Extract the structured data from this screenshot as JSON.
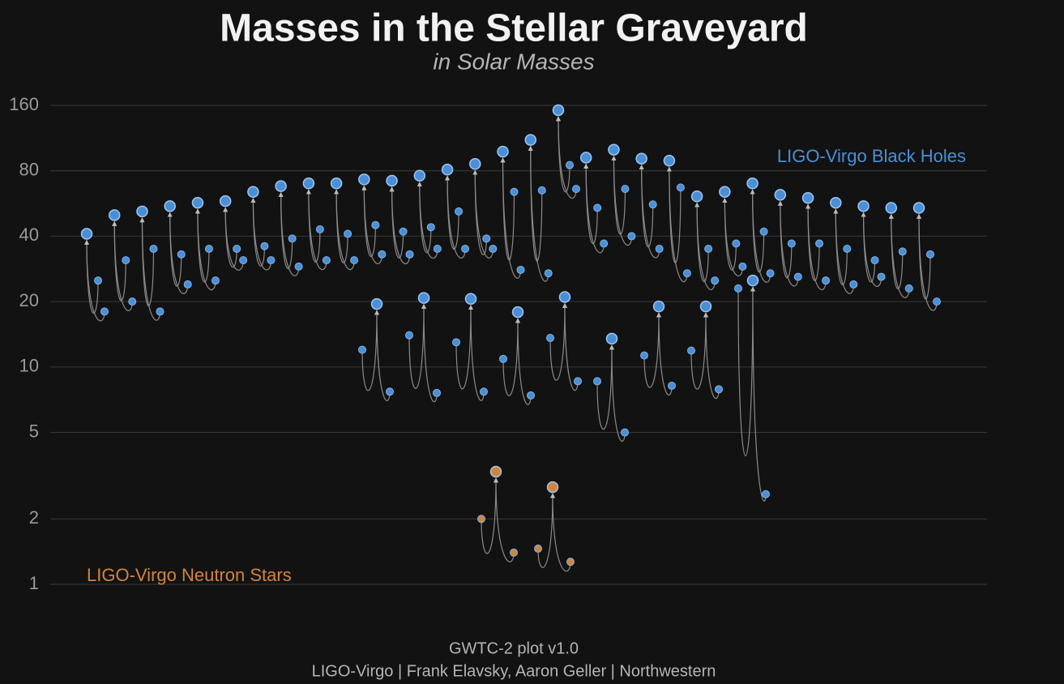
{
  "chart_data": {
    "type": "merger",
    "title": "Masses in the Stellar Graveyard",
    "subtitle": "in Solar Masses",
    "credits": [
      "GWTC-2 plot v1.0",
      "LIGO-Virgo | Frank Elavsky, Aaron Geller | Northwestern"
    ],
    "log_scale": true,
    "grid": true,
    "ylim": [
      1,
      160
    ],
    "yticks": [
      1,
      2,
      5,
      10,
      20,
      40,
      80,
      160
    ],
    "series": [
      {
        "name": "LIGO-Virgo Black Holes",
        "color": "#4a8fd6",
        "events": [
          {
            "m1": 25,
            "m2": 18,
            "final": 41
          },
          {
            "m1": 31,
            "m2": 20,
            "final": 50
          },
          {
            "m1": 35,
            "m2": 18,
            "final": 52
          },
          {
            "m1": 33,
            "m2": 24,
            "final": 55
          },
          {
            "m1": 35,
            "m2": 25,
            "final": 57
          },
          {
            "m1": 35,
            "m2": 31,
            "final": 58
          },
          {
            "m1": 36,
            "m2": 31,
            "final": 64
          },
          {
            "m1": 39,
            "m2": 29,
            "final": 68
          },
          {
            "m1": 43,
            "m2": 31,
            "final": 70
          },
          {
            "m1": 41,
            "m2": 31,
            "final": 70
          },
          {
            "m1": 45,
            "m2": 33,
            "final": 73
          },
          {
            "m1": 42,
            "m2": 33,
            "final": 72
          },
          {
            "m1": 44,
            "m2": 35,
            "final": 76
          },
          {
            "m1": 52,
            "m2": 35,
            "final": 81
          },
          {
            "m1": 39,
            "m2": 35,
            "final": 86
          },
          {
            "m1": 64,
            "m2": 28,
            "final": 98
          },
          {
            "m1": 65,
            "m2": 27,
            "final": 111
          },
          {
            "m1": 85,
            "m2": 66,
            "final": 152
          },
          {
            "m1": 54,
            "m2": 37,
            "final": 92
          },
          {
            "m1": 66,
            "m2": 40,
            "final": 100
          },
          {
            "m1": 56,
            "m2": 35,
            "final": 91
          },
          {
            "m1": 67,
            "m2": 27,
            "final": 89
          },
          {
            "m1": 35,
            "m2": 25,
            "final": 61
          },
          {
            "m1": 37,
            "m2": 29,
            "final": 64
          },
          {
            "m1": 42,
            "m2": 27,
            "final": 70
          },
          {
            "m1": 37,
            "m2": 26,
            "final": 62
          },
          {
            "m1": 37,
            "m2": 25,
            "final": 60
          },
          {
            "m1": 35,
            "m2": 24,
            "final": 57
          },
          {
            "m1": 31,
            "m2": 26,
            "final": 55
          },
          {
            "m1": 34,
            "m2": 23,
            "final": 54
          },
          {
            "m1": 33,
            "m2": 20,
            "final": 54
          },
          {
            "m1": 12,
            "m2": 7.7,
            "final": 19.5
          },
          {
            "m1": 14,
            "m2": 7.6,
            "final": 20.8
          },
          {
            "m1": 13,
            "m2": 7.7,
            "final": 20.6
          },
          {
            "m1": 10.9,
            "m2": 7.4,
            "final": 17.9
          },
          {
            "m1": 13.6,
            "m2": 8.6,
            "final": 21
          },
          {
            "m1": 8.6,
            "m2": 5,
            "final": 13.5
          },
          {
            "m1": 11.3,
            "m2": 8.2,
            "final": 19
          },
          {
            "m1": 11.9,
            "m2": 7.9,
            "final": 19
          },
          {
            "m1": 23,
            "m2": 2.6,
            "final": 25
          }
        ]
      },
      {
        "name": "LIGO-Virgo Neutron Stars",
        "color": "#d2843c",
        "events": [
          {
            "m1": 2.0,
            "m2": 1.4,
            "final": 3.3
          },
          {
            "m1": 1.46,
            "m2": 1.27,
            "final": 2.8
          }
        ]
      }
    ]
  }
}
